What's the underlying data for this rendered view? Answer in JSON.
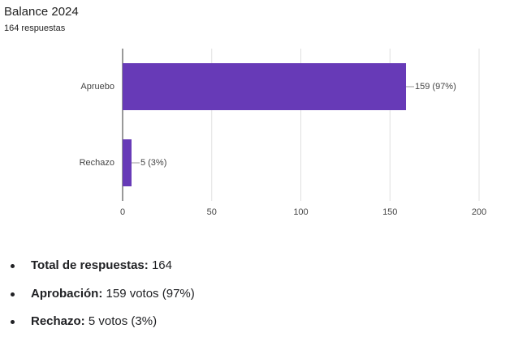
{
  "chart_data": {
    "type": "hbar",
    "title": "Balance 2024",
    "subtitle": "164 respuestas",
    "categories": [
      "Apruebo",
      "Rechazo"
    ],
    "values": [
      159,
      5
    ],
    "value_labels": [
      "159 (97%)",
      "5 (3%)"
    ],
    "color": "#673ab7",
    "xlim": [
      0,
      200
    ],
    "xticks": [
      0,
      50,
      100,
      150,
      200
    ],
    "grid": true
  },
  "summary": [
    {
      "label": "Total de respuestas:",
      "text": "164"
    },
    {
      "label": "Aprobación:",
      "text": "159 votos (97%)"
    },
    {
      "label": "Rechazo:",
      "text": "5 votos (3%)"
    }
  ]
}
